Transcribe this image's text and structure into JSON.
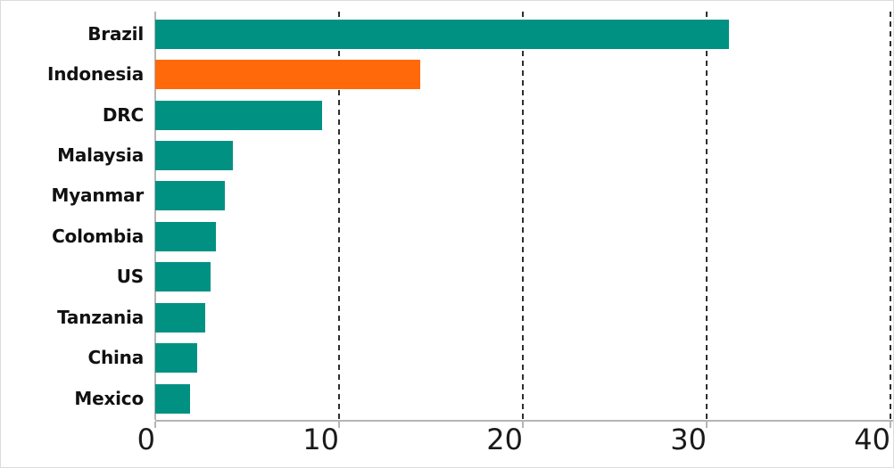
{
  "chart_data": {
    "type": "bar",
    "orientation": "horizontal",
    "title": "",
    "xlabel": "",
    "ylabel": "",
    "categories": [
      "Brazil",
      "Indonesia",
      "DRC",
      "Malaysia",
      "Myanmar",
      "Colombia",
      "US",
      "Tanzania",
      "China",
      "Mexico"
    ],
    "values": [
      31.2,
      14.4,
      9.1,
      4.2,
      3.8,
      3.3,
      3.0,
      2.7,
      2.3,
      1.9
    ],
    "highlight_category": "Indonesia",
    "xlim": [
      0,
      40
    ],
    "xticks": [
      0,
      10,
      20,
      30,
      40
    ],
    "xtick_labels": [
      "0",
      "10",
      "20",
      "30",
      "40"
    ],
    "grid": "dashed-vertical",
    "legend": "none",
    "colors": {
      "bar": "#009183",
      "highlight": "#FF690A",
      "axis_line": "#b5b5b5",
      "gridline": "#2e2e2e",
      "label_text": "#111111",
      "tick_text": "#1a1a1a",
      "background": "#ffffff"
    }
  }
}
